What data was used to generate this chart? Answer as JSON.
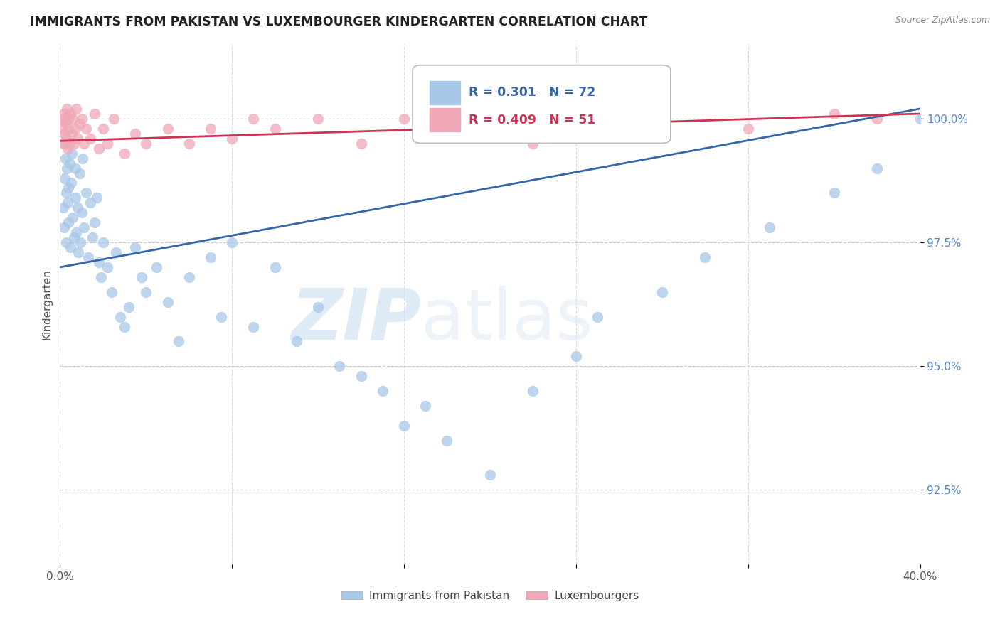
{
  "title": "IMMIGRANTS FROM PAKISTAN VS LUXEMBOURGER KINDERGARTEN CORRELATION CHART",
  "source": "Source: ZipAtlas.com",
  "ylabel": "Kindergarten",
  "xlim": [
    0.0,
    40.0
  ],
  "ylim": [
    91.0,
    101.5
  ],
  "yticks": [
    92.5,
    95.0,
    97.5,
    100.0
  ],
  "ytick_labels": [
    "92.5%",
    "95.0%",
    "97.5%",
    "100.0%"
  ],
  "xticks": [
    0.0,
    8.0,
    16.0,
    24.0,
    32.0,
    40.0
  ],
  "xtick_labels": [
    "0.0%",
    "",
    "",
    "",
    "",
    "40.0%"
  ],
  "blue_color": "#a8c8e8",
  "pink_color": "#f0a8b8",
  "blue_line_color": "#3366aa",
  "pink_line_color": "#cc3355",
  "R_blue": 0.301,
  "N_blue": 72,
  "R_pink": 0.409,
  "N_pink": 51,
  "legend_label_blue": "Immigrants from Pakistan",
  "legend_label_pink": "Luxembourgers",
  "watermark_zip": "ZIP",
  "watermark_atlas": "atlas",
  "blue_x": [
    0.15,
    0.18,
    0.2,
    0.22,
    0.25,
    0.28,
    0.3,
    0.32,
    0.35,
    0.38,
    0.4,
    0.45,
    0.5,
    0.52,
    0.55,
    0.6,
    0.65,
    0.7,
    0.72,
    0.75,
    0.8,
    0.85,
    0.9,
    0.95,
    1.0,
    1.05,
    1.1,
    1.2,
    1.3,
    1.4,
    1.5,
    1.6,
    1.7,
    1.8,
    1.9,
    2.0,
    2.2,
    2.4,
    2.6,
    2.8,
    3.0,
    3.2,
    3.5,
    3.8,
    4.0,
    4.5,
    5.0,
    5.5,
    6.0,
    7.0,
    7.5,
    8.0,
    9.0,
    10.0,
    11.0,
    12.0,
    13.0,
    14.0,
    15.0,
    16.0,
    17.0,
    18.0,
    20.0,
    22.0,
    24.0,
    25.0,
    28.0,
    30.0,
    33.0,
    36.0,
    38.0,
    40.0
  ],
  "blue_y": [
    98.2,
    99.5,
    97.8,
    98.8,
    99.2,
    98.5,
    97.5,
    99.0,
    98.3,
    97.9,
    98.6,
    99.1,
    97.4,
    98.7,
    99.3,
    98.0,
    97.6,
    98.4,
    99.0,
    97.7,
    98.2,
    97.3,
    98.9,
    97.5,
    98.1,
    99.2,
    97.8,
    98.5,
    97.2,
    98.3,
    97.6,
    97.9,
    98.4,
    97.1,
    96.8,
    97.5,
    97.0,
    96.5,
    97.3,
    96.0,
    95.8,
    96.2,
    97.4,
    96.8,
    96.5,
    97.0,
    96.3,
    95.5,
    96.8,
    97.2,
    96.0,
    97.5,
    95.8,
    97.0,
    95.5,
    96.2,
    95.0,
    94.8,
    94.5,
    93.8,
    94.2,
    93.5,
    92.8,
    94.5,
    95.2,
    96.0,
    96.5,
    97.2,
    97.8,
    98.5,
    99.0,
    100.0
  ],
  "pink_x": [
    0.1,
    0.15,
    0.18,
    0.2,
    0.22,
    0.25,
    0.28,
    0.3,
    0.32,
    0.35,
    0.38,
    0.4,
    0.45,
    0.5,
    0.55,
    0.6,
    0.65,
    0.7,
    0.75,
    0.8,
    0.9,
    1.0,
    1.1,
    1.2,
    1.4,
    1.6,
    1.8,
    2.0,
    2.2,
    2.5,
    3.0,
    3.5,
    4.0,
    5.0,
    6.0,
    7.0,
    8.0,
    9.0,
    10.0,
    12.0,
    14.0,
    16.0,
    18.0,
    20.0,
    22.0,
    24.0,
    26.0,
    28.0,
    32.0,
    36.0,
    38.0
  ],
  "pink_y": [
    99.8,
    100.0,
    99.5,
    100.1,
    99.7,
    100.0,
    99.6,
    99.9,
    100.2,
    99.4,
    100.0,
    99.8,
    99.5,
    100.1,
    99.7,
    100.0,
    99.5,
    99.8,
    100.2,
    99.6,
    99.9,
    100.0,
    99.5,
    99.8,
    99.6,
    100.1,
    99.4,
    99.8,
    99.5,
    100.0,
    99.3,
    99.7,
    99.5,
    99.8,
    99.5,
    99.8,
    99.6,
    100.0,
    99.8,
    100.0,
    99.5,
    100.0,
    99.8,
    100.0,
    99.5,
    100.0,
    99.8,
    100.0,
    99.8,
    100.1,
    100.0
  ],
  "blue_line_x": [
    0.0,
    40.0
  ],
  "blue_line_y": [
    97.0,
    100.2
  ],
  "pink_line_x": [
    0.0,
    40.0
  ],
  "pink_line_y": [
    99.55,
    100.1
  ]
}
